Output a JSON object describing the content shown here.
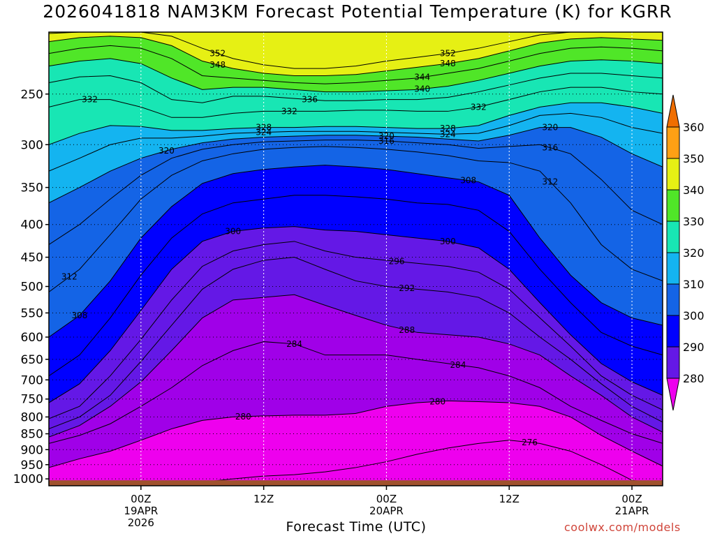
{
  "title": "2026041818 NAM3KM Forecast Potential Temperature (K) for KGRR",
  "xlabel": "Forecast Time (UTC)",
  "credit": "coolwx.com/models",
  "chart_data": {
    "type": "heatmap",
    "title": "2026041818 NAM3KM Forecast Potential Temperature (K) for KGRR",
    "xlabel": "Forecast Time (UTC)",
    "ylabel": "",
    "variable": "Potential Temperature (K)",
    "y_scale": "log-pressure (inverted)",
    "ylim_hPa": [
      1025,
      200
    ],
    "xlim_hours_from_init": [
      -3,
      57
    ],
    "grid": true,
    "y_ticks": [
      {
        "value": 250,
        "label": "250"
      },
      {
        "value": 300,
        "label": "300"
      },
      {
        "value": 350,
        "label": "350"
      },
      {
        "value": 400,
        "label": "400"
      },
      {
        "value": 450,
        "label": "450"
      },
      {
        "value": 500,
        "label": "500"
      },
      {
        "value": 550,
        "label": "550"
      },
      {
        "value": 600,
        "label": "600"
      },
      {
        "value": 650,
        "label": "650"
      },
      {
        "value": 700,
        "label": "700"
      },
      {
        "value": 750,
        "label": "750"
      },
      {
        "value": 800,
        "label": "800"
      },
      {
        "value": 850,
        "label": "850"
      },
      {
        "value": 900,
        "label": "900"
      },
      {
        "value": 950,
        "label": "950"
      },
      {
        "value": 1000,
        "label": "1000"
      }
    ],
    "x_ticks": [
      {
        "hour": 6,
        "lines": [
          "00Z",
          "19APR",
          "2026"
        ]
      },
      {
        "hour": 18,
        "lines": [
          "12Z"
        ]
      },
      {
        "hour": 30,
        "lines": [
          "00Z",
          "20APR"
        ]
      },
      {
        "hour": 42,
        "lines": [
          "12Z"
        ]
      },
      {
        "hour": 54,
        "lines": [
          "00Z",
          "21APR"
        ]
      }
    ],
    "colorbar": {
      "levels": [
        280,
        290,
        300,
        310,
        320,
        330,
        340,
        350,
        360
      ],
      "labels": [
        "280",
        "290",
        "300",
        "310",
        "320",
        "330",
        "340",
        "350",
        "360"
      ],
      "colors": [
        "#ee00ee",
        "#a000e8",
        "#6418e6",
        "#0000ff",
        "#1464e6",
        "#14b4f0",
        "#18e6b4",
        "#50e628",
        "#e6f014",
        "#ffa014",
        "#f06e00"
      ]
    },
    "ground_color": "#a0522d",
    "times_hours": [
      -3,
      0,
      3,
      6,
      9,
      12,
      15,
      18,
      21,
      24,
      27,
      30,
      33,
      36,
      39,
      42,
      45,
      48,
      51,
      54,
      57
    ],
    "isentropes": [
      {
        "theta": 276,
        "label": "276",
        "p_hPa": [
          1018,
          1018,
          1018,
          1018,
          1018,
          1012,
          1000,
          990,
          985,
          975,
          960,
          940,
          915,
          895,
          880,
          870,
          880,
          905,
          950,
          1005,
          1018
        ]
      },
      {
        "theta": 280,
        "label": "280",
        "p_hPa": [
          960,
          930,
          905,
          870,
          835,
          810,
          800,
          797,
          795,
          795,
          790,
          770,
          760,
          755,
          757,
          760,
          770,
          800,
          855,
          905,
          955
        ]
      },
      {
        "theta": 284,
        "label": "284",
        "p_hPa": [
          880,
          855,
          820,
          770,
          720,
          665,
          630,
          610,
          615,
          640,
          640,
          640,
          650,
          660,
          670,
          690,
          720,
          770,
          810,
          850,
          880
        ]
      },
      {
        "theta": 288,
        "label": "288",
        "p_hPa": [
          860,
          825,
          770,
          705,
          630,
          560,
          525,
          520,
          515,
          535,
          555,
          575,
          590,
          595,
          600,
          615,
          640,
          690,
          740,
          800,
          845
        ]
      },
      {
        "theta": 292,
        "label": "292",
        "p_hPa": [
          835,
          800,
          740,
          655,
          575,
          505,
          470,
          455,
          450,
          470,
          490,
          500,
          505,
          510,
          520,
          550,
          600,
          650,
          710,
          770,
          815
        ]
      },
      {
        "theta": 296,
        "label": "296",
        "p_hPa": [
          805,
          770,
          690,
          605,
          525,
          465,
          440,
          430,
          425,
          440,
          450,
          455,
          460,
          465,
          475,
          505,
          560,
          620,
          690,
          740,
          780
        ]
      },
      {
        "theta": 300,
        "label": "300",
        "p_hPa": [
          760,
          710,
          630,
          545,
          470,
          425,
          410,
          405,
          403,
          408,
          410,
          415,
          420,
          425,
          435,
          470,
          530,
          595,
          660,
          705,
          740
        ]
      },
      {
        "theta": 304,
        "label": "304",
        "p_hPa": [
          690,
          640,
          560,
          480,
          420,
          385,
          370,
          365,
          360,
          360,
          362,
          365,
          370,
          372,
          380,
          410,
          470,
          530,
          590,
          620,
          640
        ]
      },
      {
        "theta": 308,
        "label": "308",
        "p_hPa": [
          600,
          555,
          490,
          420,
          375,
          345,
          333,
          328,
          325,
          323,
          325,
          328,
          333,
          338,
          343,
          360,
          420,
          480,
          530,
          560,
          575
        ]
      },
      {
        "theta": 312,
        "label": "312",
        "p_hPa": [
          510,
          470,
          415,
          365,
          335,
          318,
          310,
          305,
          303,
          302,
          303,
          305,
          308,
          312,
          318,
          320,
          330,
          370,
          430,
          470,
          490
        ]
      },
      {
        "theta": 316,
        "label": "316",
        "p_hPa": [
          430,
          400,
          365,
          335,
          315,
          305,
          300,
          297,
          296,
          295,
          295,
          296,
          298,
          300,
          304,
          302,
          300,
          310,
          340,
          380,
          400
        ]
      },
      {
        "theta": 320,
        "label": "320",
        "p_hPa": [
          370,
          350,
          330,
          315,
          305,
          298,
          294,
          292,
          291,
          290,
          290,
          291,
          292,
          294,
          296,
          290,
          282,
          282,
          292,
          310,
          325
        ]
      },
      {
        "theta": 324,
        "label": "324",
        "p_hPa": [
          330,
          315,
          300,
          293,
          293,
          291,
          288,
          287,
          286,
          286,
          286,
          287,
          288,
          289,
          288,
          280,
          270,
          268,
          272,
          282,
          288
        ]
      },
      {
        "theta": 328,
        "label": "328",
        "p_hPa": [
          300,
          288,
          280,
          281,
          285,
          285,
          283,
          282,
          282,
          281,
          281,
          282,
          283,
          283,
          280,
          270,
          262,
          258,
          258,
          262,
          268
        ]
      },
      {
        "theta": 332,
        "label": "332",
        "p_hPa": [
          262,
          255,
          255,
          262,
          272,
          272,
          268,
          266,
          266,
          266,
          265,
          265,
          266,
          266,
          262,
          255,
          248,
          244,
          244,
          248,
          250
        ]
      },
      {
        "theta": 336,
        "label": "336",
        "p_hPa": [
          240,
          235,
          234,
          240,
          255,
          258,
          252,
          252,
          254,
          256,
          256,
          255,
          255,
          253,
          248,
          242,
          236,
          232,
          232,
          234,
          236
        ]
      },
      {
        "theta": 340,
        "label": "340",
        "p_hPa": [
          226,
          222,
          220,
          224,
          236,
          246,
          244,
          244,
          246,
          248,
          248,
          247,
          246,
          243,
          238,
          232,
          226,
          222,
          221,
          222,
          224
        ]
      },
      {
        "theta": 344,
        "label": "344",
        "p_hPa": [
          216,
          212,
          210,
          212,
          220,
          234,
          236,
          238,
          240,
          241,
          240,
          238,
          236,
          232,
          228,
          222,
          216,
          212,
          211,
          212,
          214
        ]
      },
      {
        "theta": 348,
        "label": "348",
        "p_hPa": [
          207,
          204,
          203,
          204,
          210,
          222,
          228,
          232,
          234,
          234,
          233,
          230,
          227,
          224,
          220,
          214,
          208,
          205,
          204,
          205,
          206
        ]
      },
      {
        "theta": 352,
        "label": "352",
        "p_hPa": [
          201,
          200,
          200,
          200,
          203,
          212,
          220,
          225,
          228,
          228,
          226,
          222,
          219,
          216,
          212,
          207,
          202,
          200,
          200,
          200,
          200
        ]
      }
    ],
    "labelled_contours": [
      {
        "text": "352",
        "hour": 13.5
      },
      {
        "text": "352",
        "hour": 36
      },
      {
        "text": "348",
        "hour": 13.5
      },
      {
        "text": "348",
        "hour": 36
      },
      {
        "text": "344",
        "hour": 33.5
      },
      {
        "text": "340",
        "hour": 33.5
      },
      {
        "text": "336",
        "hour": 22.5
      },
      {
        "text": "332",
        "hour": 1
      },
      {
        "text": "332",
        "hour": 20.5
      },
      {
        "text": "332",
        "hour": 39
      },
      {
        "text": "328",
        "hour": 18
      },
      {
        "text": "328",
        "hour": 36
      },
      {
        "text": "324",
        "hour": 18
      },
      {
        "text": "324",
        "hour": 36
      },
      {
        "text": "320",
        "hour": 30
      },
      {
        "text": "320",
        "hour": 46
      },
      {
        "text": "316",
        "hour": 30
      },
      {
        "text": "316",
        "hour": 46
      },
      {
        "text": "312",
        "hour": 46
      },
      {
        "text": "312",
        "hour": -1
      },
      {
        "text": "308",
        "hour": 38
      },
      {
        "text": "308",
        "hour": 0
      },
      {
        "text": "320",
        "hour": 8.5
      },
      {
        "text": "300",
        "hour": 15
      },
      {
        "text": "300",
        "hour": 36
      },
      {
        "text": "296",
        "hour": 31
      },
      {
        "text": "292",
        "hour": 32
      },
      {
        "text": "288",
        "hour": 32
      },
      {
        "text": "284",
        "hour": 21
      },
      {
        "text": "284",
        "hour": 37
      },
      {
        "text": "280",
        "hour": 16
      },
      {
        "text": "280",
        "hour": 35
      },
      {
        "text": "276",
        "hour": 44
      }
    ]
  }
}
